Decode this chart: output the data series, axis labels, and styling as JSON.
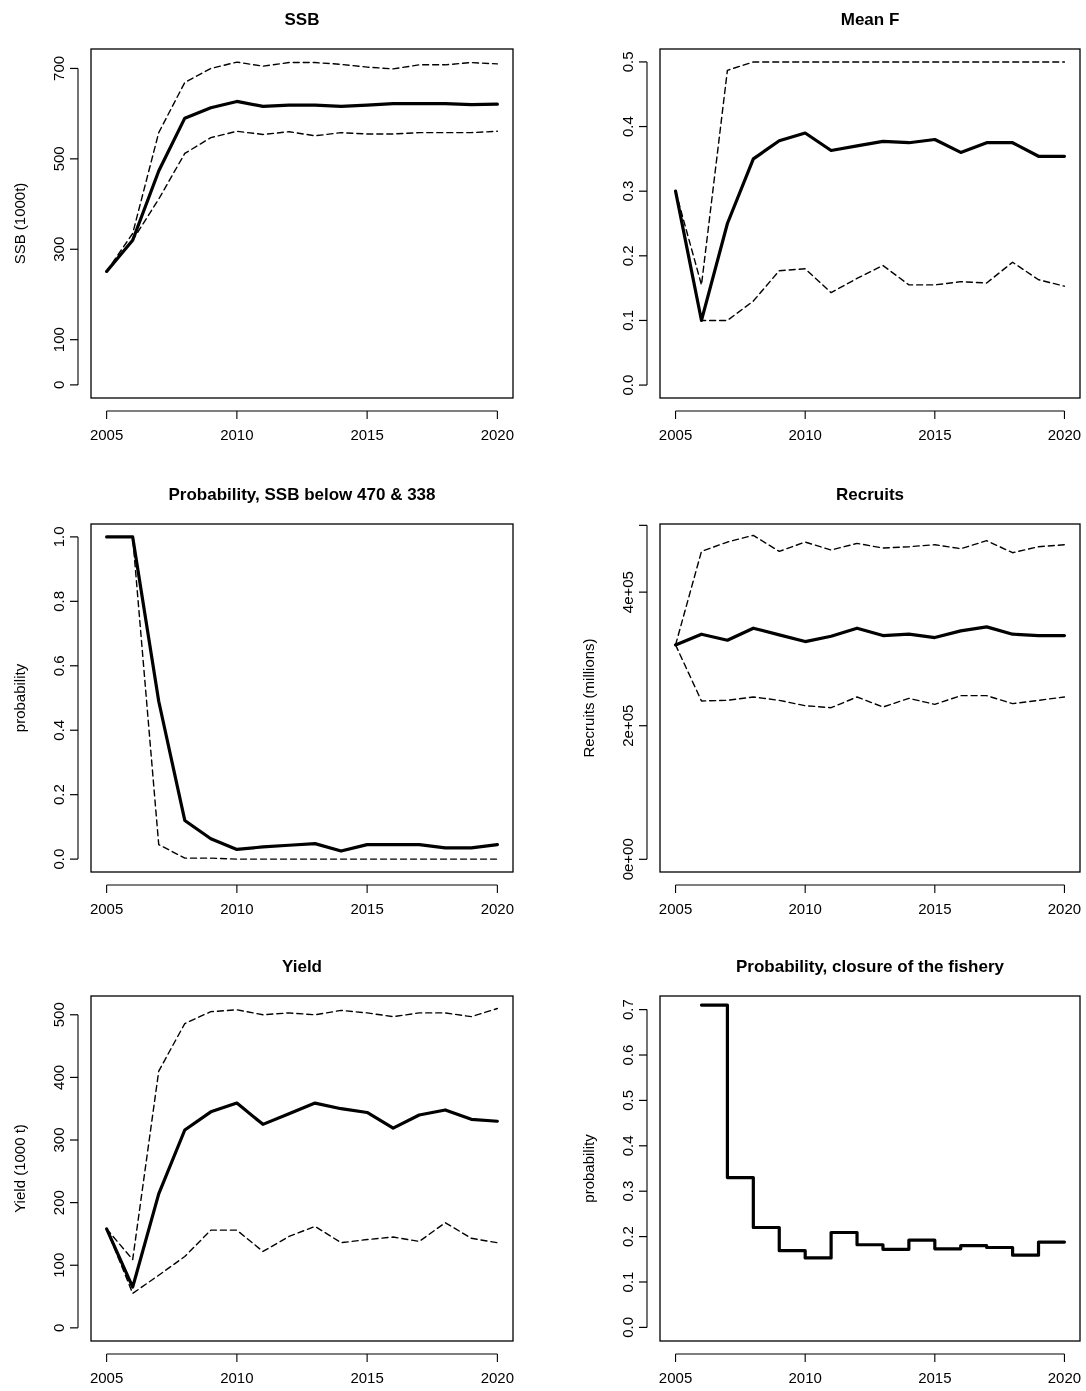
{
  "chart_data": [
    {
      "type": "line",
      "title": "SSB",
      "ylabel": "SSB (1000t)",
      "x": [
        2005,
        2006,
        2007,
        2008,
        2009,
        2010,
        2011,
        2012,
        2013,
        2014,
        2015,
        2016,
        2017,
        2018,
        2019,
        2020
      ],
      "xlim": [
        2004.4,
        2020.6
      ],
      "xticks": [
        2005,
        2010,
        2015,
        2020
      ],
      "ylim": [
        -29,
        743
      ],
      "yticks": [
        0,
        100,
        300,
        500,
        700
      ],
      "series": [
        {
          "color": "#000000",
          "line_style": "solid",
          "values": [
            251,
            320,
            473,
            590,
            613,
            627,
            616,
            619,
            619,
            616,
            619,
            622,
            622,
            622,
            620,
            621
          ]
        },
        {
          "color": "#000000",
          "line_style": "dashed",
          "values": [
            251,
            335,
            558,
            669,
            700,
            714,
            705,
            713,
            713,
            709,
            703,
            699,
            708,
            708,
            713,
            710
          ]
        },
        {
          "color": "#000000",
          "line_style": "dashed",
          "values": [
            251,
            320,
            411,
            512,
            547,
            561,
            554,
            560,
            551,
            558,
            555,
            555,
            558,
            558,
            558,
            561
          ]
        }
      ]
    },
    {
      "type": "line",
      "title": "Mean F",
      "x": [
        2005,
        2006,
        2007,
        2008,
        2009,
        2010,
        2011,
        2012,
        2013,
        2014,
        2015,
        2016,
        2017,
        2018,
        2019,
        2020
      ],
      "xlim": [
        2004.4,
        2020.6
      ],
      "xticks": [
        2005,
        2010,
        2015,
        2020
      ],
      "ylim": [
        -0.02,
        0.52
      ],
      "yticks": [
        {
          "value": 0,
          "label": "0.0"
        },
        0.1,
        0.2,
        0.3,
        0.4,
        0.5
      ],
      "series": [
        {
          "color": "#000000",
          "line_style": "solid",
          "values": [
            0.3,
            0.1,
            0.25,
            0.35,
            0.378,
            0.39,
            0.363,
            0.37,
            0.377,
            0.375,
            0.38,
            0.36,
            0.375,
            0.375,
            0.354,
            0.354
          ]
        },
        {
          "color": "#000000",
          "line_style": "dashed",
          "values": [
            0.3,
            0.155,
            0.487,
            0.5,
            0.5,
            0.5,
            0.5,
            0.5,
            0.5,
            0.5,
            0.5,
            0.5,
            0.5,
            0.5,
            0.5,
            0.5
          ]
        },
        {
          "color": "#000000",
          "line_style": "dashed",
          "values": [
            0.3,
            0.1,
            0.1,
            0.13,
            0.177,
            0.18,
            0.143,
            0.165,
            0.185,
            0.155,
            0.155,
            0.16,
            0.158,
            0.19,
            0.163,
            0.153
          ]
        }
      ]
    },
    {
      "type": "line",
      "title": "Probability, SSB below 470 & 338",
      "ylabel": "probability",
      "x": [
        2005,
        2006,
        2007,
        2008,
        2009,
        2010,
        2011,
        2012,
        2013,
        2014,
        2015,
        2016,
        2017,
        2018,
        2019,
        2020
      ],
      "xlim": [
        2004.4,
        2020.6
      ],
      "xticks": [
        2005,
        2010,
        2015,
        2020
      ],
      "ylim": [
        -0.04,
        1.04
      ],
      "yticks": [
        {
          "value": 0,
          "label": "0.0"
        },
        0.2,
        0.4,
        0.6,
        0.8,
        {
          "value": 1,
          "label": "1.0"
        }
      ],
      "series": [
        {
          "color": "#000000",
          "line_style": "solid",
          "values": [
            1,
            1,
            0.49,
            0.12,
            0.063,
            0.03,
            0.038,
            0.043,
            0.048,
            0.025,
            0.045,
            0.045,
            0.045,
            0.035,
            0.035,
            0.045
          ]
        },
        {
          "color": "#000000",
          "line_style": "dashed",
          "values": [
            1,
            1,
            0.045,
            0.003,
            0.003,
            0,
            0,
            0,
            0,
            0,
            0,
            0,
            0,
            0,
            0,
            0
          ]
        }
      ]
    },
    {
      "type": "line",
      "title": "Recruits",
      "ylabel": "Recruits (millions)",
      "x": [
        2005,
        2006,
        2007,
        2008,
        2009,
        2010,
        2011,
        2012,
        2013,
        2014,
        2015,
        2016,
        2017,
        2018,
        2019,
        2020
      ],
      "xlim": [
        2004.4,
        2020.6
      ],
      "xticks": [
        2005,
        2010,
        2015,
        2020
      ],
      "ylim": [
        -19000,
        502000
      ],
      "yticks": [
        {
          "value": 0,
          "label": "0e+00"
        },
        {
          "value": 200000,
          "label": "2e+05"
        },
        {
          "value": 400000,
          "label": "4e+05"
        },
        {
          "value": 500000,
          "label": null
        }
      ],
      "series": [
        {
          "color": "#000000",
          "line_style": "solid",
          "values": [
            321000,
            337000,
            328000,
            346000,
            336000,
            326000,
            334000,
            346000,
            335000,
            337000,
            332000,
            342000,
            348000,
            337000,
            335000,
            335000
          ]
        },
        {
          "color": "#000000",
          "line_style": "dashed",
          "values": [
            321000,
            461000,
            475000,
            485000,
            461000,
            475000,
            463000,
            473000,
            466000,
            468000,
            471000,
            465000,
            477000,
            459000,
            468000,
            471000
          ]
        },
        {
          "color": "#000000",
          "line_style": "dashed",
          "values": [
            321000,
            237000,
            238000,
            243000,
            238000,
            230000,
            227000,
            243000,
            228000,
            241000,
            232000,
            245000,
            245000,
            233000,
            238000,
            243000
          ]
        }
      ]
    },
    {
      "type": "line",
      "title": "Yield",
      "ylabel": "Yield (1000 t)",
      "x": [
        2005,
        2006,
        2007,
        2008,
        2009,
        2010,
        2011,
        2012,
        2013,
        2014,
        2015,
        2016,
        2017,
        2018,
        2019,
        2020
      ],
      "xlim": [
        2004.4,
        2020.6
      ],
      "xticks": [
        2005,
        2010,
        2015,
        2020
      ],
      "ylim": [
        -21,
        530
      ],
      "yticks": [
        0,
        100,
        200,
        300,
        400,
        500
      ],
      "series": [
        {
          "color": "#000000",
          "line_style": "solid",
          "values": [
            158,
            65,
            214,
            316,
            345,
            359,
            325,
            342,
            359,
            350,
            344,
            319,
            340,
            348,
            333,
            330
          ]
        },
        {
          "color": "#000000",
          "line_style": "dashed",
          "values": [
            158,
            109,
            410,
            486,
            505,
            508,
            500,
            503,
            500,
            507,
            503,
            497,
            503,
            503,
            497,
            510
          ]
        },
        {
          "color": "#000000",
          "line_style": "dashed",
          "values": [
            158,
            55,
            84,
            114,
            156,
            156,
            122,
            146,
            162,
            136,
            141,
            145,
            138,
            168,
            143,
            136
          ]
        }
      ]
    },
    {
      "type": "step",
      "title": "Probability, closure of the fishery",
      "ylabel": "probability",
      "x": [
        2006,
        2007,
        2008,
        2009,
        2010,
        2011,
        2012,
        2013,
        2014,
        2015,
        2016,
        2017,
        2018,
        2019,
        2020
      ],
      "xlim": [
        2004.4,
        2020.6
      ],
      "xticks": [
        2005,
        2010,
        2015,
        2020
      ],
      "ylim": [
        -0.03,
        0.73
      ],
      "yticks": [
        {
          "value": 0,
          "label": "0.0"
        },
        0.1,
        0.2,
        0.3,
        0.4,
        0.5,
        0.6,
        0.7
      ],
      "series": [
        {
          "color": "#000000",
          "line_style": "solid",
          "values": [
            0.71,
            0.33,
            0.22,
            0.169,
            0.153,
            0.209,
            0.182,
            0.172,
            0.192,
            0.173,
            0.18,
            0.176,
            0.159,
            0.188,
            0.188
          ]
        }
      ]
    }
  ]
}
